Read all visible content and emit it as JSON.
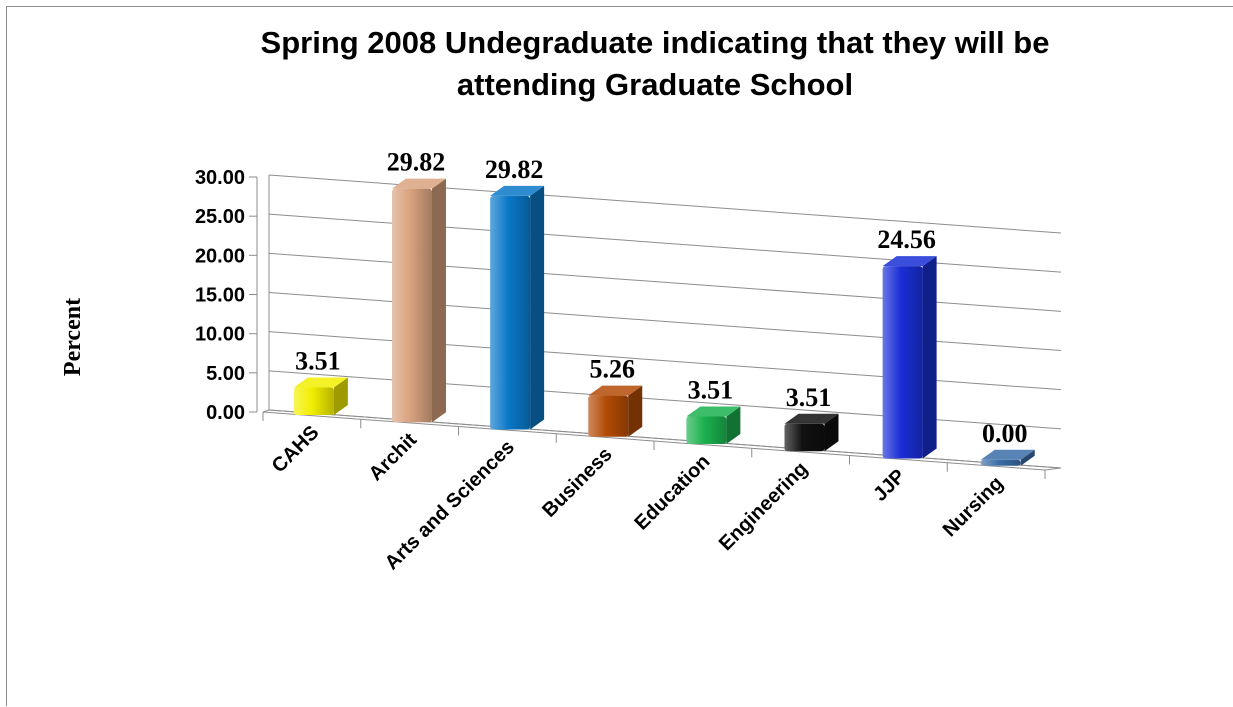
{
  "chart_data": {
    "type": "bar",
    "title_lines": [
      "Spring 2008  Undegraduate indicating that they will be",
      "attending Graduate School"
    ],
    "ylabel": "Percent",
    "xlabel": "",
    "ylim": [
      0,
      30
    ],
    "yticks": [
      "0.00",
      "5.00",
      "10.00",
      "15.00",
      "20.00",
      "25.00",
      "30.00"
    ],
    "grid": true,
    "legend": "none",
    "categories": [
      "CAHS",
      "Archit",
      "Arts and Sciences",
      "Business",
      "Education",
      "Engineering",
      "JJP",
      "Nursing"
    ],
    "values": [
      3.51,
      29.82,
      29.82,
      5.26,
      3.51,
      3.51,
      24.56,
      0.0
    ],
    "value_labels": [
      "3.51",
      "29.82",
      "29.82",
      "5.26",
      "3.51",
      "3.51",
      "24.56",
      "0.00"
    ],
    "colors": [
      "#f2ee00",
      "#d9a27e",
      "#0a78c9",
      "#b24b05",
      "#1bb04e",
      "#101010",
      "#1a2fd6",
      "#3b6ea8"
    ]
  }
}
